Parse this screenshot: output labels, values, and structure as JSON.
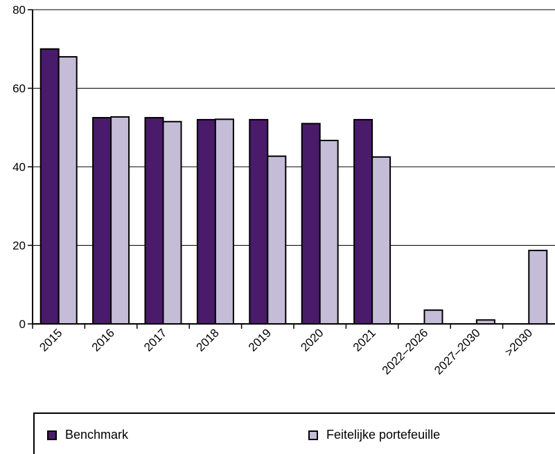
{
  "chart_data": {
    "type": "bar",
    "categories": [
      "2015",
      "2016",
      "2017",
      "2018",
      "2019",
      "2020",
      "2021",
      "2022–2026",
      "2027–2030",
      ">2030"
    ],
    "series": [
      {
        "name": "Benchmark",
        "color": "#4a1a6b",
        "values": [
          70,
          52.5,
          52.5,
          52,
          52,
          51,
          52,
          0,
          0,
          0
        ]
      },
      {
        "name": "Feitelijke portefeuille",
        "color": "#c5bcd8",
        "values": [
          68,
          52.7,
          51.5,
          52.1,
          42.7,
          46.7,
          42.5,
          3.5,
          1,
          18.7
        ]
      }
    ],
    "ylim": [
      0,
      80
    ],
    "yticks": [
      0,
      20,
      40,
      60,
      80
    ],
    "grid": true,
    "legend": "bottom"
  }
}
